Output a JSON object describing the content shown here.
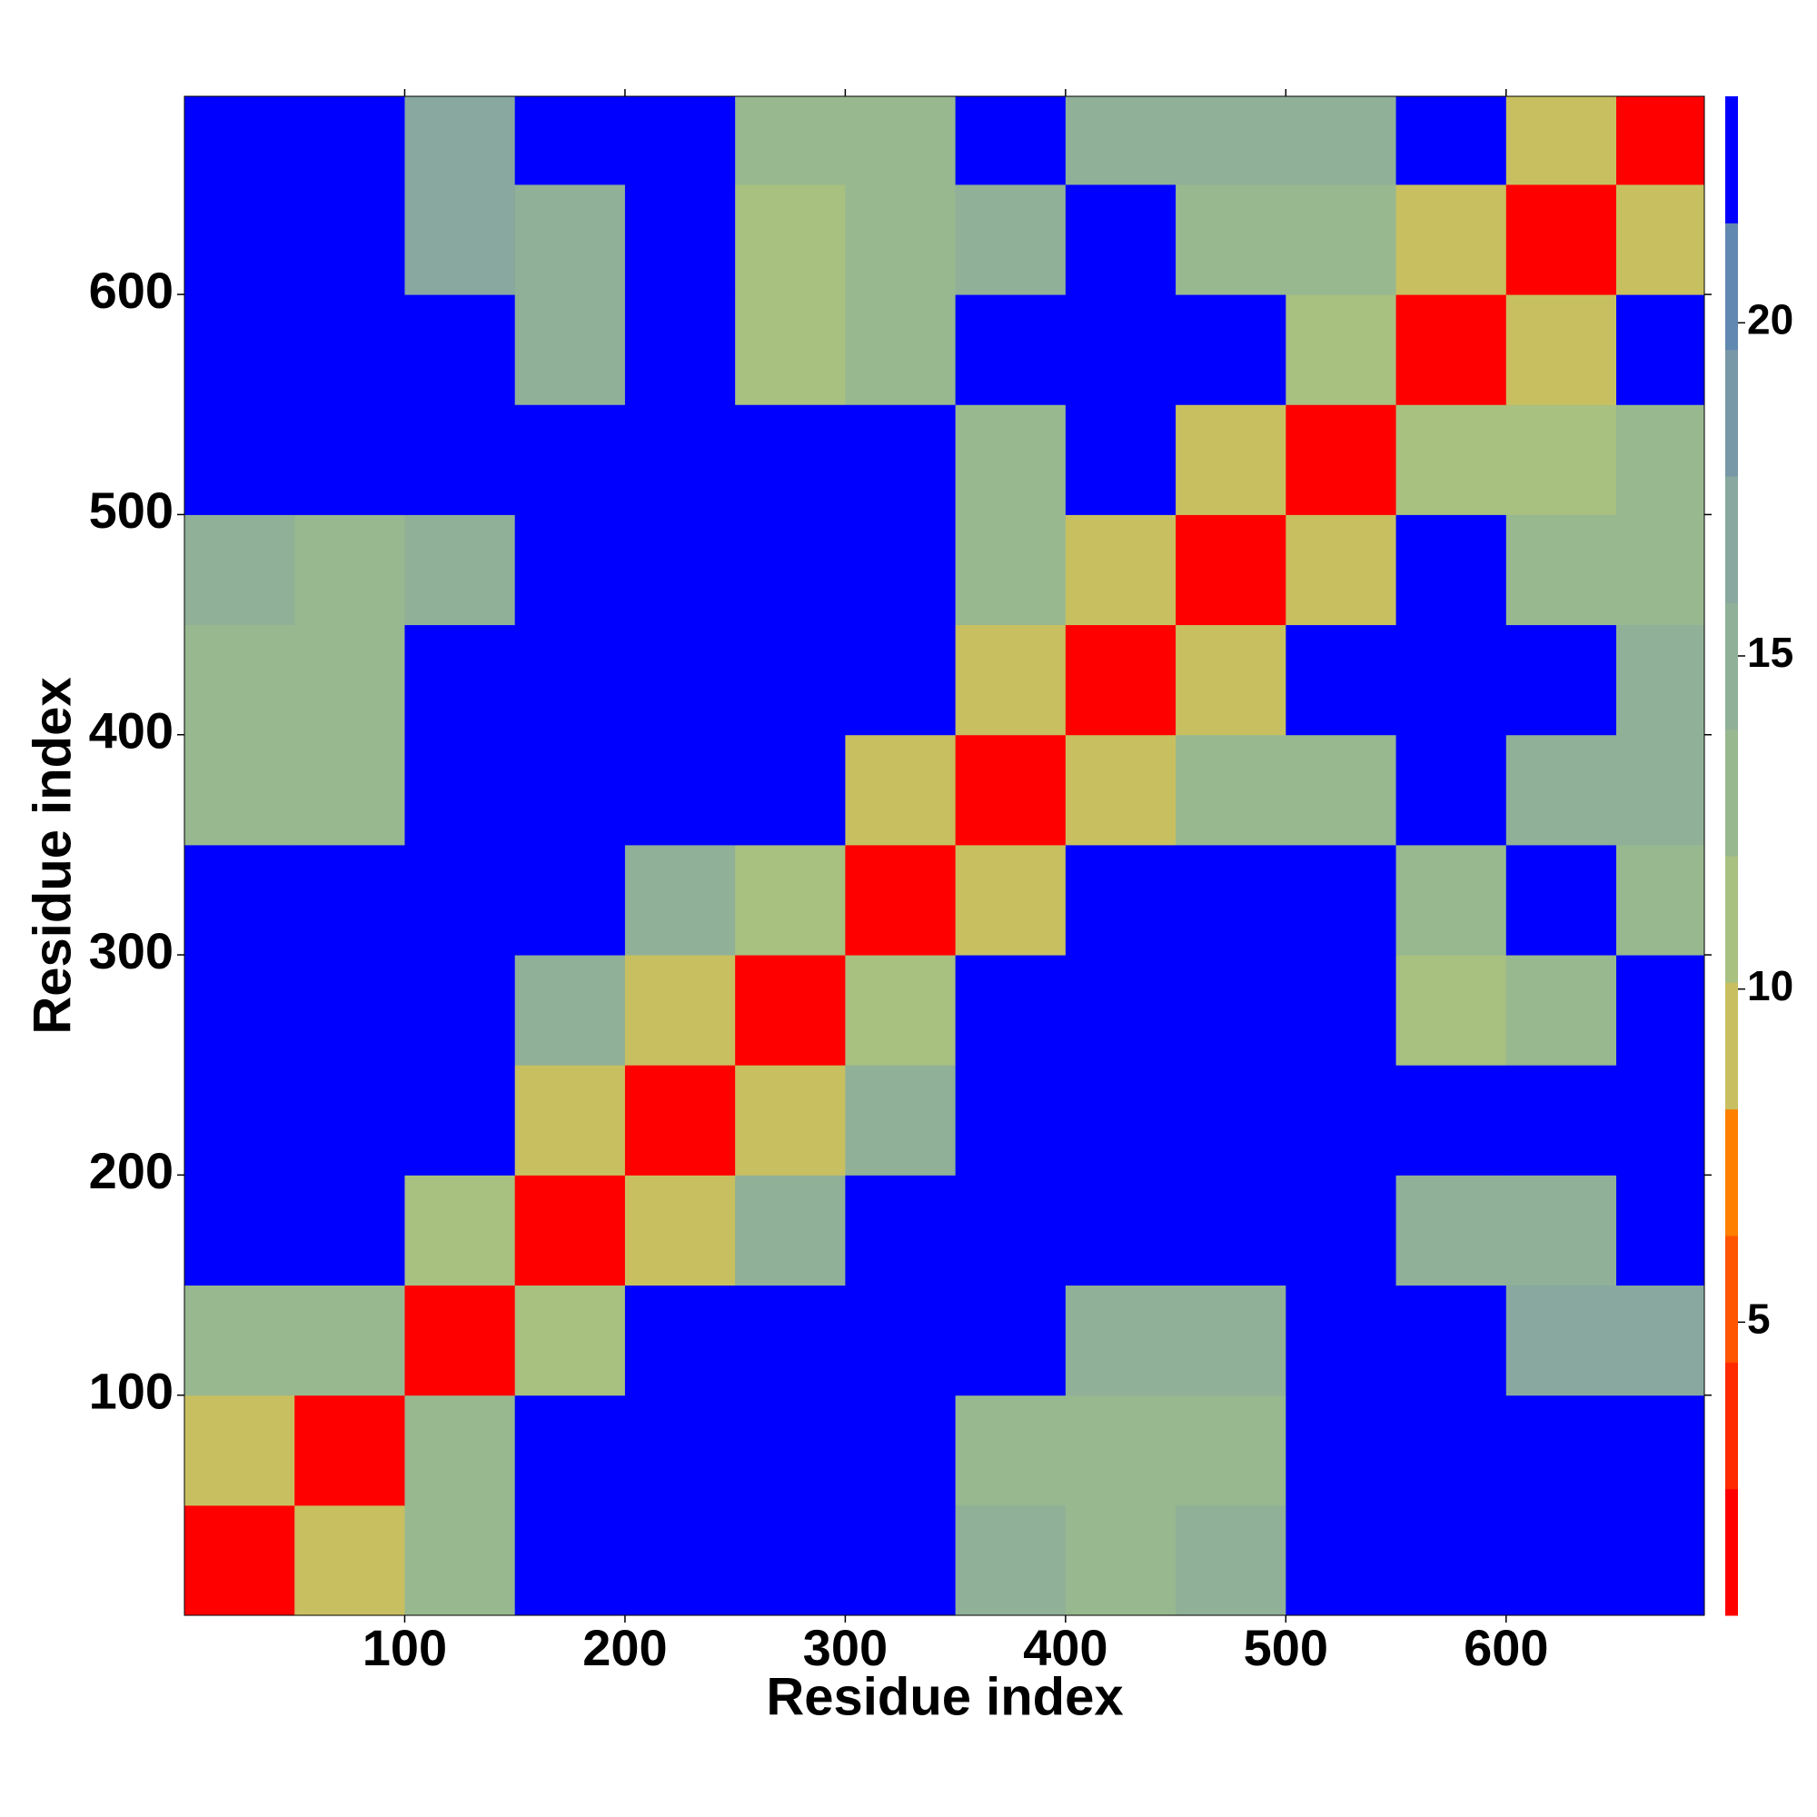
{
  "chart_data": {
    "type": "heatmap",
    "xlabel": "Residue index",
    "ylabel": "Residue index",
    "xbins": [
      0,
      50,
      100,
      150,
      200,
      250,
      300,
      350,
      400,
      450,
      500,
      550,
      600,
      650,
      700
    ],
    "ybins": [
      0,
      50,
      100,
      150,
      200,
      250,
      300,
      350,
      400,
      450,
      500,
      550,
      600,
      650,
      700
    ],
    "xlim": [
      0,
      690
    ],
    "ylim": [
      0,
      690
    ],
    "xticks": [
      100,
      200,
      300,
      400,
      500,
      600
    ],
    "yticks": [
      100,
      200,
      300,
      400,
      500,
      600
    ],
    "clim": [
      0.6,
      23.4
    ],
    "cticks": [
      5,
      10,
      15,
      20
    ],
    "colorscale": [
      "#ff0000",
      "#ff2a00",
      "#ff5500",
      "#ff7f00",
      "#c8c060",
      "#a8c080",
      "#98b890",
      "#90b098",
      "#88a8a0",
      "#7898a8",
      "#6088b0",
      "#0000ff"
    ],
    "z": [
      [
        2,
        10,
        13,
        24,
        24,
        24,
        24,
        14,
        13,
        14,
        24,
        24,
        24,
        24
      ],
      [
        10,
        2,
        12,
        24,
        24,
        24,
        24,
        13,
        13,
        12,
        24,
        24,
        24,
        24
      ],
      [
        13,
        12,
        2,
        11,
        24,
        24,
        24,
        24,
        15,
        14,
        24,
        24,
        16,
        16
      ],
      [
        24,
        24,
        11,
        2,
        10,
        14,
        24,
        24,
        24,
        24,
        24,
        15,
        14,
        24
      ],
      [
        24,
        24,
        24,
        10,
        2,
        10,
        14,
        24,
        24,
        24,
        24,
        24,
        24,
        24
      ],
      [
        24,
        24,
        24,
        14,
        10,
        2,
        11,
        24,
        24,
        24,
        24,
        11,
        12,
        24
      ],
      [
        24,
        24,
        24,
        24,
        14,
        11,
        2,
        10,
        24,
        24,
        24,
        12,
        24,
        12
      ],
      [
        12,
        13,
        24,
        24,
        24,
        24,
        10,
        2,
        10,
        12,
        12,
        24,
        14,
        14
      ],
      [
        12,
        12,
        24,
        24,
        24,
        24,
        24,
        10,
        2,
        10,
        24,
        24,
        24,
        14
      ],
      [
        14,
        13,
        14,
        24,
        24,
        24,
        24,
        12,
        10,
        2,
        10,
        24,
        12,
        13
      ],
      [
        24,
        24,
        24,
        24,
        24,
        24,
        24,
        12,
        24,
        10,
        2,
        11,
        11,
        13
      ],
      [
        24,
        24,
        24,
        15,
        24,
        11,
        12,
        24,
        24,
        24,
        11,
        2,
        10,
        24
      ],
      [
        24,
        24,
        16,
        14,
        24,
        11,
        13,
        14,
        24,
        13,
        12,
        10,
        2,
        10
      ],
      [
        24,
        24,
        16,
        24,
        24,
        13,
        13,
        24,
        15,
        14,
        15,
        24,
        10,
        2
      ]
    ]
  }
}
